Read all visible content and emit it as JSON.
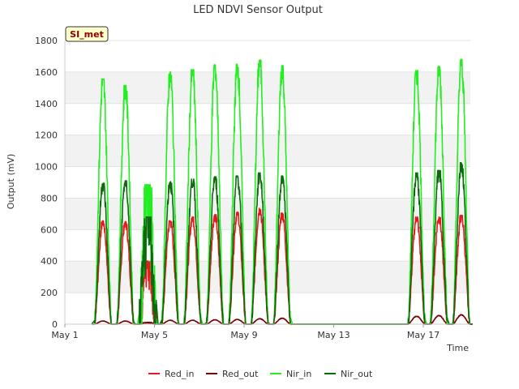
{
  "chart_data": {
    "type": "line",
    "title": "LED NDVI Sensor Output",
    "xlabel": "Time",
    "ylabel": "Output (mV)",
    "site_badge": "SI_met",
    "ylim": [
      0,
      1800
    ],
    "yticks": [
      0,
      200,
      400,
      600,
      800,
      1000,
      1200,
      1400,
      1600,
      1800
    ],
    "xlim_days": [
      0,
      18.1
    ],
    "xticks": [
      {
        "label": "May 1",
        "day": 0
      },
      {
        "label": "May 5",
        "day": 4
      },
      {
        "label": "May 9",
        "day": 8
      },
      {
        "label": "May 13",
        "day": 12
      },
      {
        "label": "May 17",
        "day": 16
      }
    ],
    "grid": "horizontal bands",
    "legend_position": "bottom",
    "daily_peak_days": [
      1.7,
      2.7,
      3.7,
      4.7,
      5.7,
      6.7,
      7.7,
      8.7,
      9.7,
      15.7,
      16.7,
      17.7
    ],
    "night_gap": {
      "from_day": 9.35,
      "to_day": 14.95
    },
    "series": [
      {
        "name": "Red_in",
        "color": "#e8191b",
        "daily_peaks": [
          655,
          650,
          400,
          655,
          680,
          695,
          710,
          735,
          705,
          680,
          680,
          690
        ],
        "gap_start_value": 0,
        "gap_end_value": 625
      },
      {
        "name": "Red_out",
        "color": "#7a0000",
        "daily_peaks": [
          20,
          20,
          12,
          25,
          25,
          28,
          30,
          35,
          38,
          50,
          55,
          60
        ],
        "gap_start_value": 0,
        "gap_end_value": 45
      },
      {
        "name": "Nir_in",
        "color": "#22ee22",
        "daily_peaks": [
          1555,
          1515,
          885,
          1600,
          1615,
          1645,
          1650,
          1675,
          1640,
          1610,
          1635,
          1680
        ],
        "gap_start_value": 50,
        "gap_end_value": 1395
      },
      {
        "name": "Nir_out",
        "color": "#0b6b0b",
        "daily_peaks": [
          895,
          910,
          680,
          905,
          920,
          935,
          940,
          960,
          940,
          960,
          975,
          1025
        ],
        "gap_start_value": 200,
        "gap_end_value": 955
      }
    ]
  }
}
